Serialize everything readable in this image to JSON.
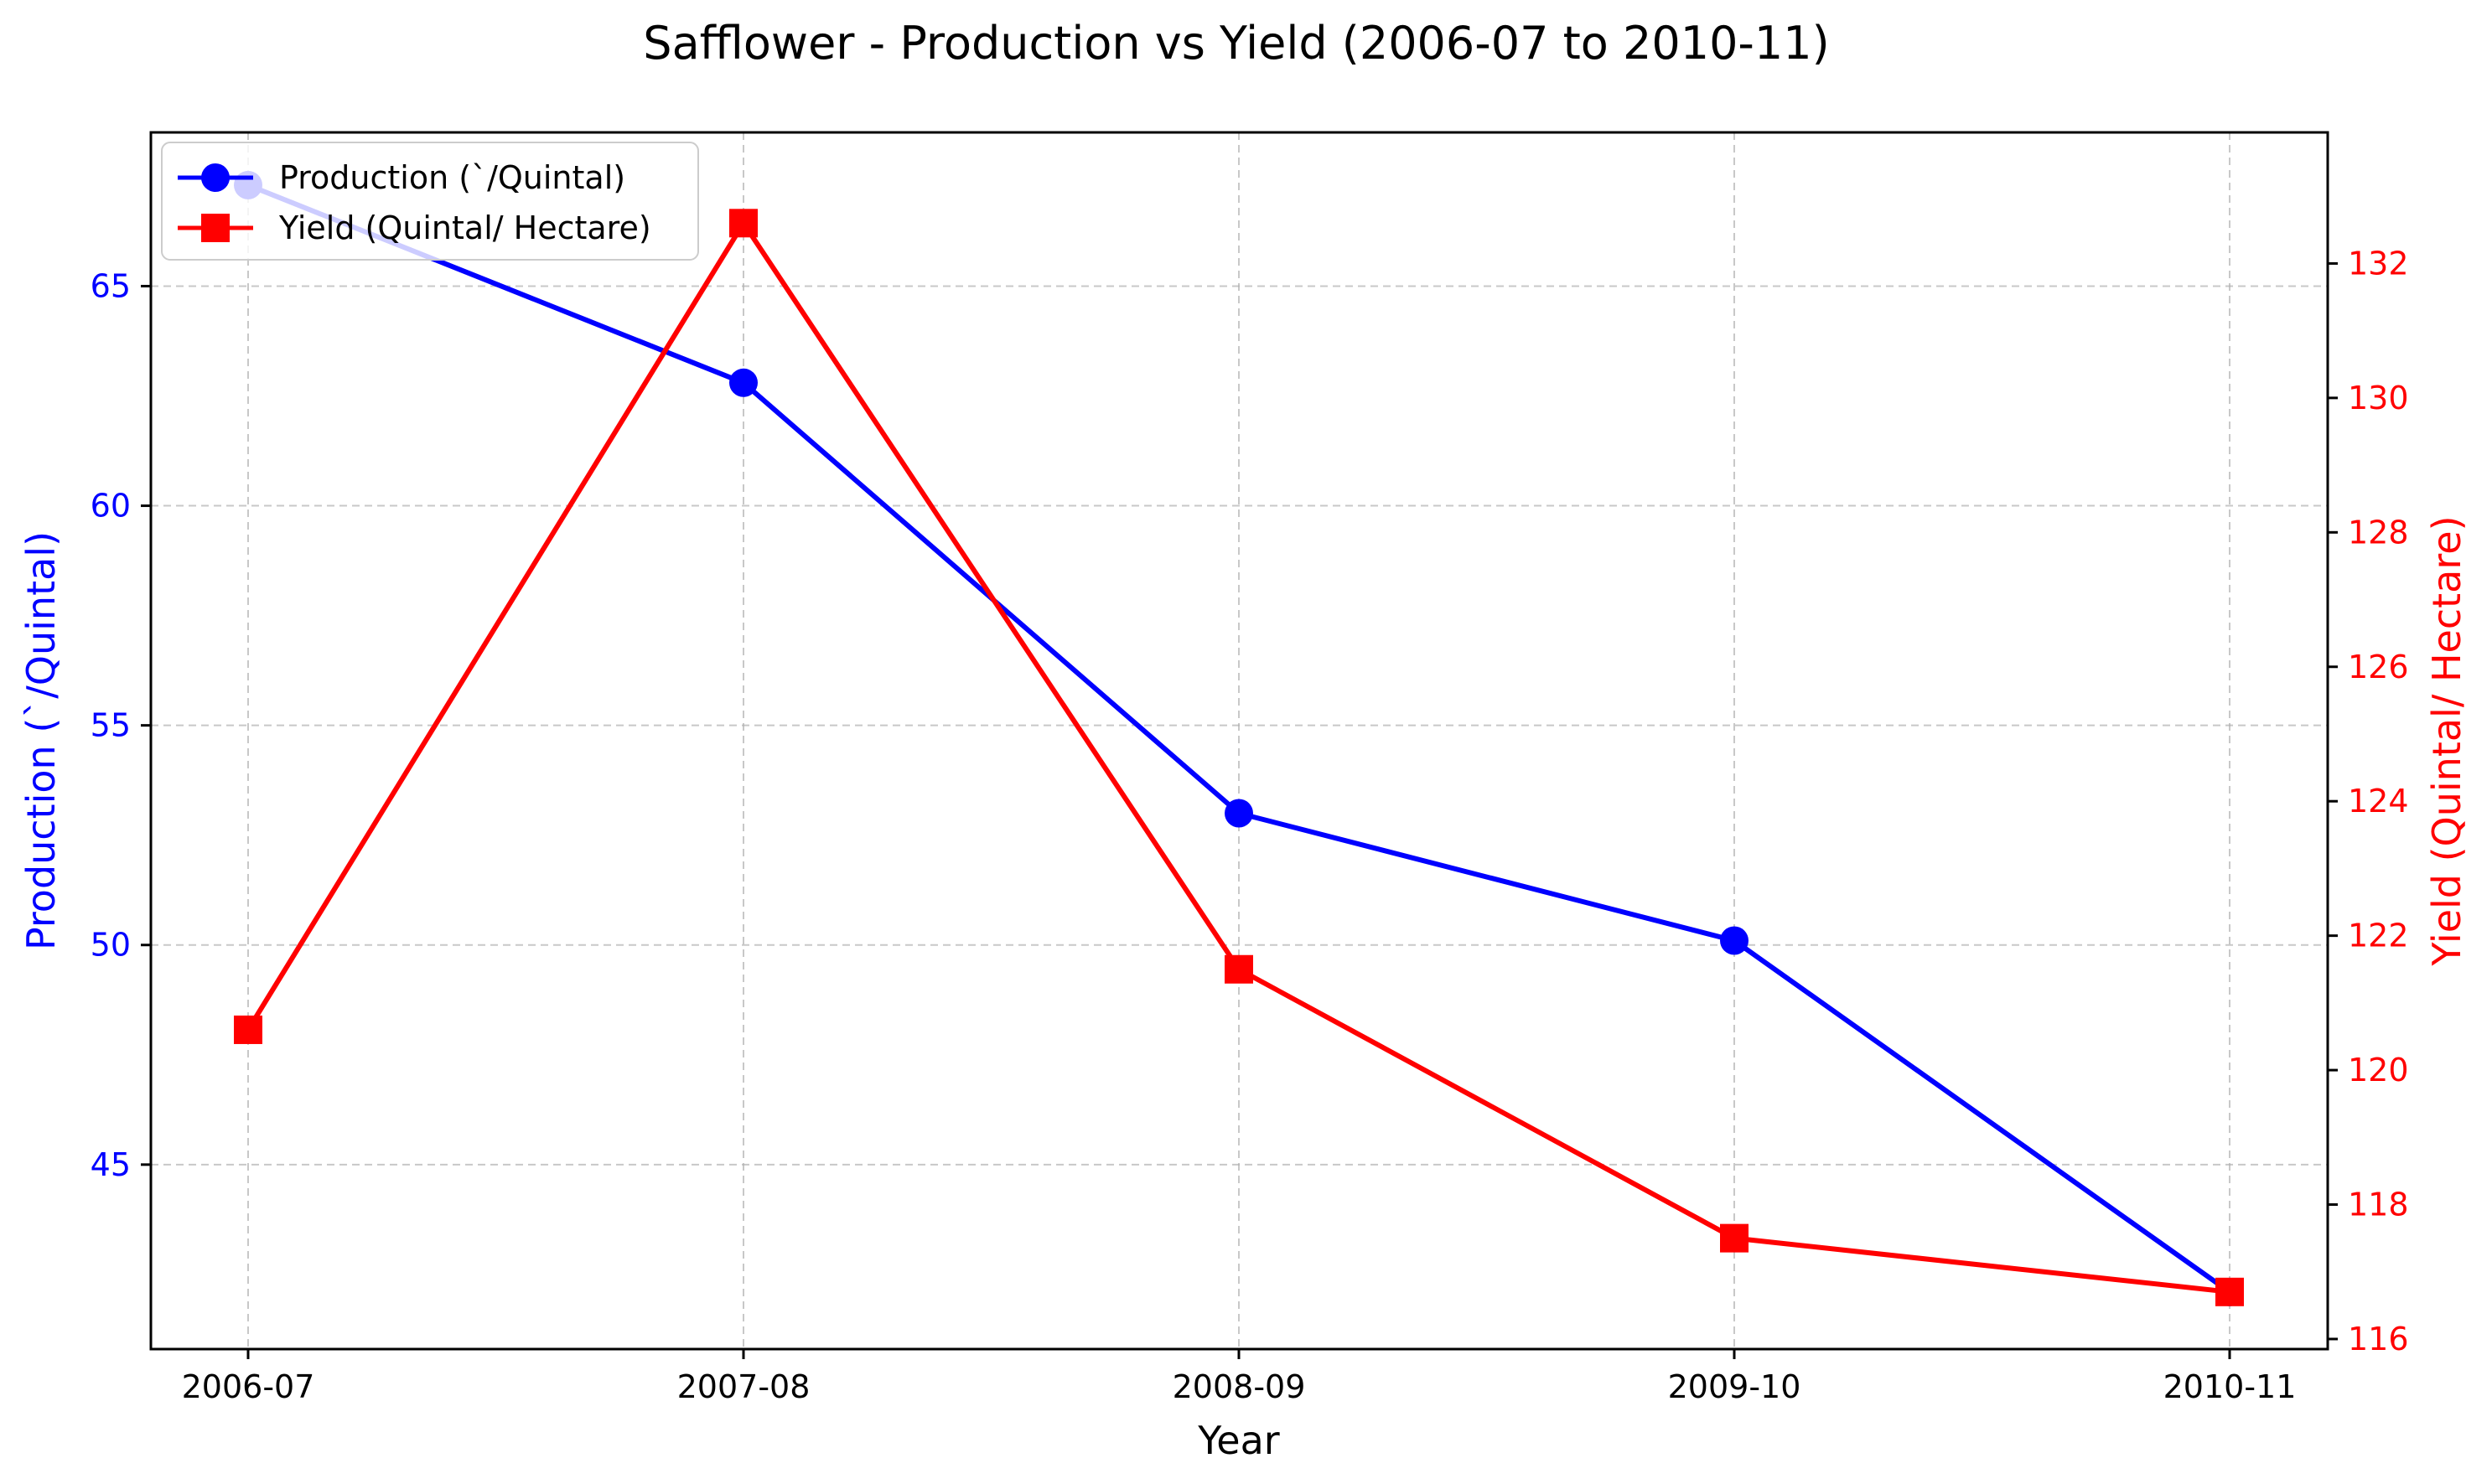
{
  "chart_data": {
    "type": "line",
    "title": "Safflower - Production vs Yield (2006-07 to 2010-11)",
    "xlabel": "Year",
    "ylabel_left": "Production (`/Quintal)",
    "ylabel_right": "Yield (Quintal/ Hectare)",
    "categories": [
      "2006-07",
      "2007-08",
      "2008-09",
      "2009-10",
      "2010-11"
    ],
    "ylim_left": [
      40.8,
      68.5
    ],
    "ylim_right": [
      115.85,
      133.95
    ],
    "yticks_left": [
      "45",
      "50",
      "55",
      "60",
      "65"
    ],
    "yticks_right": [
      "116",
      "118",
      "120",
      "122",
      "124",
      "126",
      "128",
      "130",
      "132"
    ],
    "grid": true,
    "legend_position": "top-left",
    "series": [
      {
        "name": "Production (`/Quintal)",
        "axis": "left",
        "color": "#0000ff",
        "marker": "circle",
        "values": [
          67.3,
          62.8,
          53.0,
          50.1,
          42.1
        ]
      },
      {
        "name": "Yield (Quintal/ Hectare)",
        "axis": "right",
        "color": "#ff0000",
        "marker": "square",
        "values": [
          120.6,
          132.6,
          121.5,
          117.5,
          116.7
        ]
      }
    ]
  }
}
